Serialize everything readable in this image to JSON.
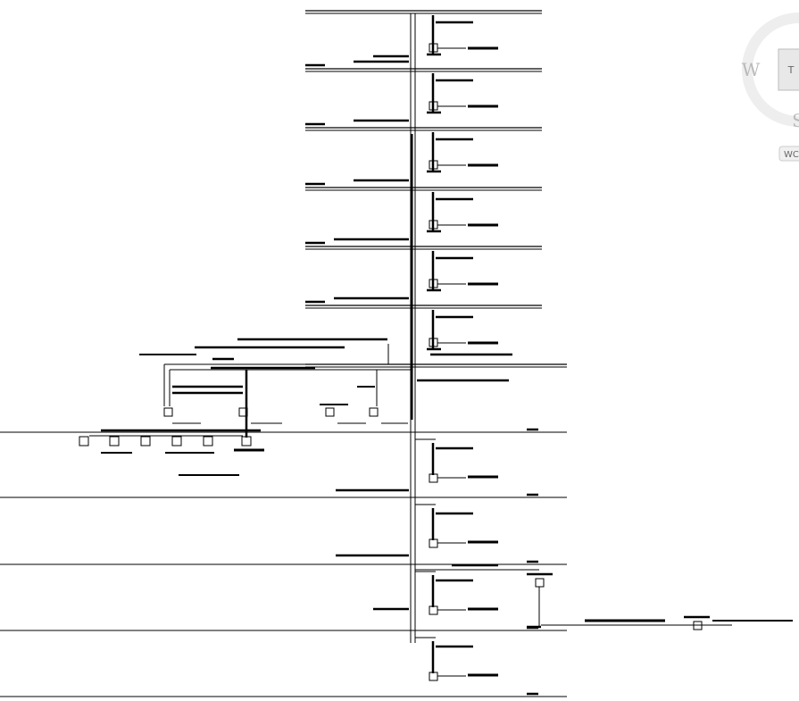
{
  "viewcube": {
    "west": "W",
    "top": "T",
    "south": "S",
    "wcs": "WC"
  }
}
